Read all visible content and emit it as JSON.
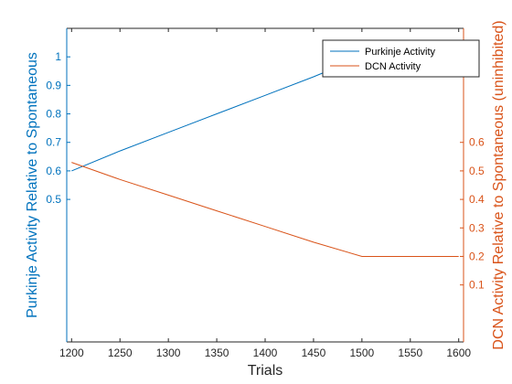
{
  "chart_data": {
    "type": "line",
    "xlabel": "Trials",
    "ylabel_left": "Purkinje Activity Relative to Spontaneous",
    "ylabel_right": "DCN Activity Relative to Spontaneous (uninhibited)",
    "xlim": [
      1195,
      1605
    ],
    "x_ticks": [
      1200,
      1250,
      1300,
      1350,
      1400,
      1450,
      1500,
      1550,
      1600
    ],
    "y_left_lim": [
      0,
      1.1
    ],
    "y_left_ticks": [
      0.5,
      0.6,
      0.7,
      0.8,
      0.9,
      1
    ],
    "y_right_lim": [
      -0.1,
      1.0
    ],
    "y_right_ticks": [
      0.1,
      0.2,
      0.3,
      0.4,
      0.5,
      0.6
    ],
    "legend_position": "top-right",
    "grid": false,
    "series": [
      {
        "name": "Purkinje Activity",
        "axis": "left",
        "color": "#0072BD",
        "x": [
          1200,
          1250,
          1300,
          1350,
          1400,
          1450,
          1500,
          1550,
          1600
        ],
        "values": [
          0.6,
          0.67,
          0.735,
          0.8,
          0.865,
          0.93,
          1.0,
          1.0,
          1.0
        ]
      },
      {
        "name": "DCN Activity",
        "axis": "right",
        "color": "#D95319",
        "x": [
          1200,
          1250,
          1300,
          1350,
          1400,
          1450,
          1500,
          1550,
          1600
        ],
        "values": [
          0.53,
          0.47,
          0.415,
          0.36,
          0.305,
          0.25,
          0.2,
          0.2,
          0.2
        ]
      }
    ],
    "colors": {
      "left_axis": "#0072BD",
      "right_axis": "#D95319",
      "bottom_axis": "#262626"
    }
  }
}
